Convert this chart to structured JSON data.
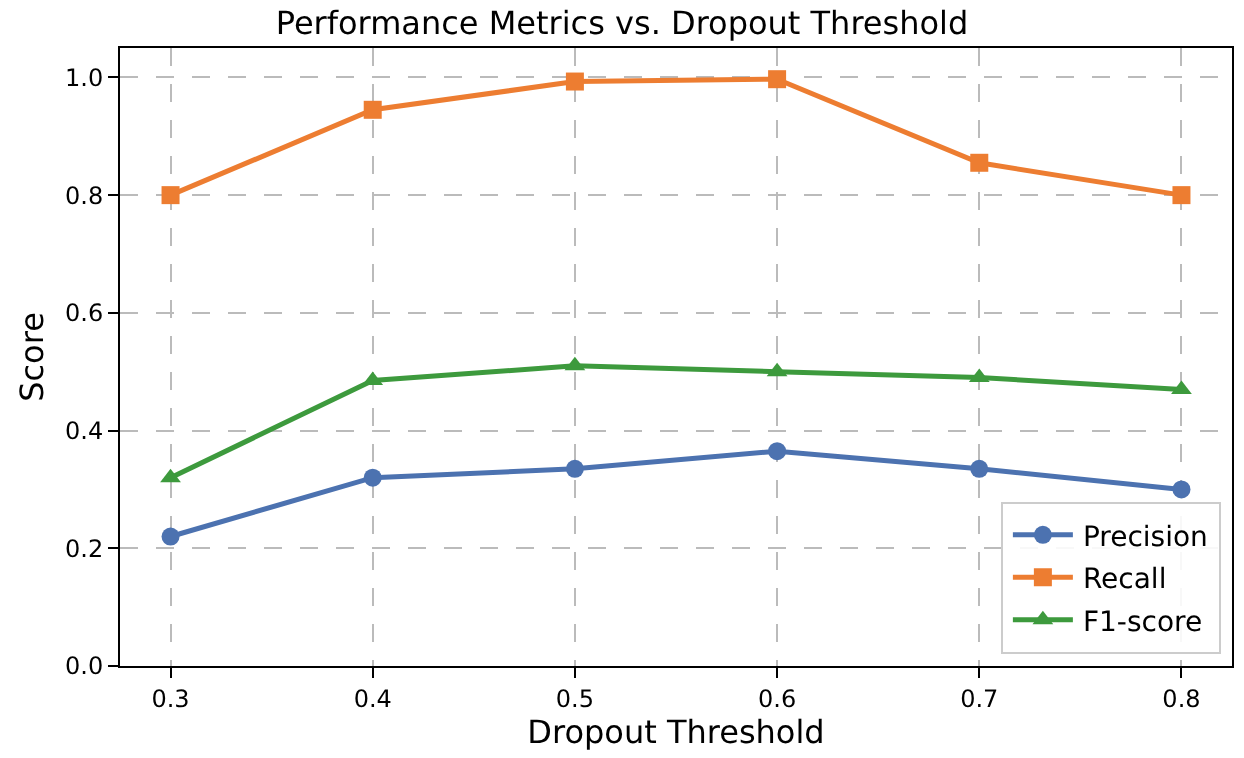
{
  "chart_data": {
    "type": "line",
    "title": "Performance Metrics vs. Dropout Threshold",
    "xlabel": "Dropout Threshold",
    "ylabel": "Score",
    "x": [
      0.3,
      0.4,
      0.5,
      0.6,
      0.7,
      0.8
    ],
    "series": [
      {
        "name": "Precision",
        "color": "#4c72b0",
        "marker": "circle",
        "values": [
          0.22,
          0.32,
          0.335,
          0.365,
          0.335,
          0.3
        ]
      },
      {
        "name": "Recall",
        "color": "#ed7d31",
        "marker": "square",
        "values": [
          0.8,
          0.945,
          0.993,
          0.997,
          0.855,
          0.8
        ]
      },
      {
        "name": "F1-score",
        "color": "#3d9a3d",
        "marker": "triangle",
        "values": [
          0.32,
          0.485,
          0.51,
          0.5,
          0.49,
          0.47
        ]
      }
    ],
    "xlim": [
      0.275,
      0.825
    ],
    "xticks": [
      {
        "value": 0.3,
        "label": "0.3"
      },
      {
        "value": 0.4,
        "label": "0.4"
      },
      {
        "value": 0.5,
        "label": "0.5"
      },
      {
        "value": 0.6,
        "label": "0.6"
      },
      {
        "value": 0.7,
        "label": "0.7"
      },
      {
        "value": 0.8,
        "label": "0.8"
      }
    ],
    "ylim": [
      0,
      1.05
    ],
    "yticks": [
      {
        "value": 0,
        "label": "0.0"
      },
      {
        "value": 0.2,
        "label": "0.2"
      },
      {
        "value": 0.4,
        "label": "0.4"
      },
      {
        "value": 0.6,
        "label": "0.6"
      },
      {
        "value": 0.8,
        "label": "0.8"
      },
      {
        "value": 1.0,
        "label": "1.0"
      }
    ],
    "grid": true,
    "legend": "bottom right",
    "line_style": "solid"
  }
}
